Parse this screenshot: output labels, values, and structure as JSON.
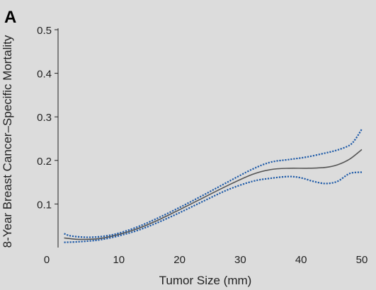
{
  "panel_label": "A",
  "chart_data": {
    "type": "line",
    "title": "",
    "xlabel": "Tumor Size (mm)",
    "ylabel": "8-Year Breast Cancer–Specific Mortality",
    "xlim": [
      0,
      50
    ],
    "ylim": [
      0,
      0.5
    ],
    "xticks": [
      0,
      10,
      20,
      30,
      40,
      50
    ],
    "xtick_labels": [
      "0",
      "10",
      "20",
      "30",
      "40",
      "50"
    ],
    "yticks": [
      0.1,
      0.2,
      0.3,
      0.4,
      0.5
    ],
    "ytick_labels": [
      "0.1",
      "0.2",
      "0.3",
      "0.4",
      "0.5"
    ],
    "grid": false,
    "colors": {
      "estimate": "#555555",
      "confidence": "#1f5ba8"
    },
    "series": [
      {
        "role": "estimate",
        "style": "solid",
        "x": [
          1,
          3,
          5,
          7,
          10,
          13,
          16,
          20,
          24,
          28,
          32,
          35,
          38,
          41,
          44,
          46,
          48,
          50
        ],
        "y": [
          0.022,
          0.019,
          0.019,
          0.021,
          0.03,
          0.043,
          0.06,
          0.087,
          0.115,
          0.143,
          0.168,
          0.179,
          0.182,
          0.182,
          0.184,
          0.19,
          0.203,
          0.225
        ]
      },
      {
        "role": "upper",
        "style": "dotted",
        "x": [
          1,
          2,
          4,
          6,
          8,
          10,
          13,
          16,
          20,
          24,
          28,
          32,
          35,
          38,
          41,
          44,
          46,
          48,
          49,
          50
        ],
        "y": [
          0.032,
          0.027,
          0.024,
          0.024,
          0.027,
          0.033,
          0.047,
          0.065,
          0.092,
          0.121,
          0.151,
          0.18,
          0.196,
          0.202,
          0.208,
          0.217,
          0.224,
          0.235,
          0.25,
          0.272
        ]
      },
      {
        "role": "lower",
        "style": "dotted",
        "x": [
          1,
          3,
          5,
          7,
          10,
          13,
          16,
          20,
          24,
          28,
          32,
          35,
          38,
          40,
          42,
          44,
          46,
          48,
          50
        ],
        "y": [
          0.012,
          0.013,
          0.015,
          0.018,
          0.027,
          0.039,
          0.055,
          0.08,
          0.107,
          0.133,
          0.152,
          0.159,
          0.163,
          0.16,
          0.152,
          0.147,
          0.152,
          0.17,
          0.173
        ]
      }
    ]
  }
}
